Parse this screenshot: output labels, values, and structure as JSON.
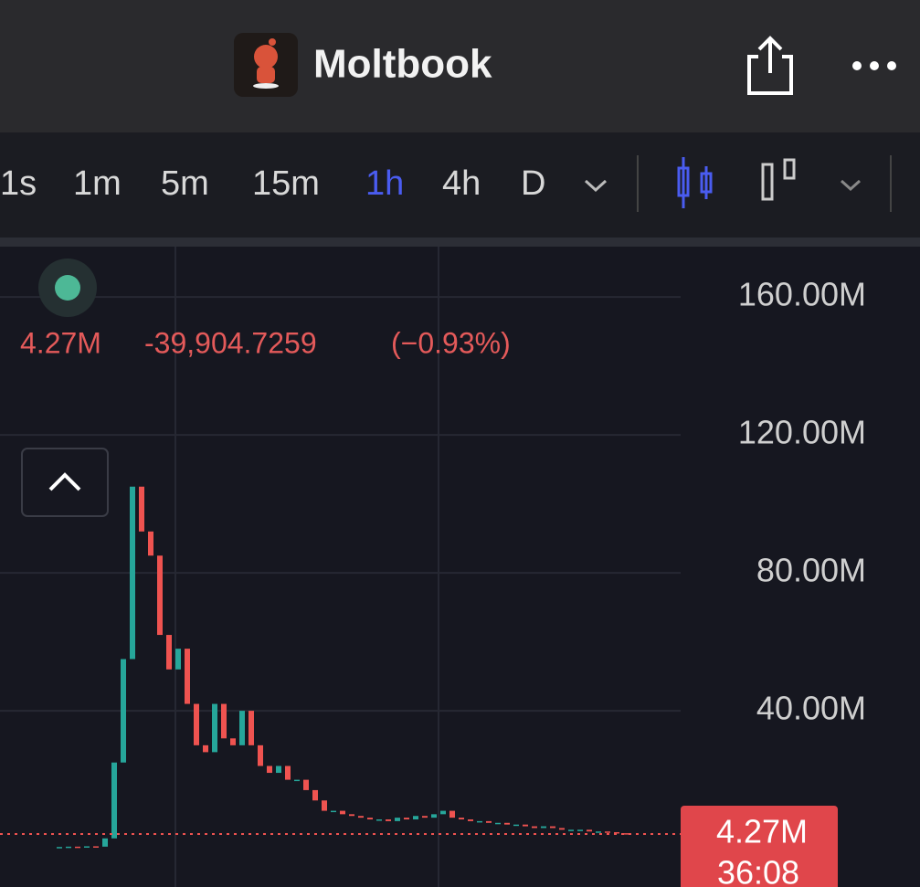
{
  "header": {
    "title": "Moltbook"
  },
  "toolbar": {
    "intervals": [
      "1s",
      "1m",
      "5m",
      "15m",
      "1h",
      "4h",
      "D"
    ]
  },
  "legend": {
    "price": "4.27M",
    "change": "-39,904.7259",
    "change_percent": "(−0.93%)"
  },
  "chart_data": {
    "type": "candlestick",
    "values": [
      0.5,
      0.6,
      0.4,
      0.7,
      0.6,
      3,
      25,
      55,
      105,
      92,
      85,
      62,
      52,
      58,
      42,
      30,
      28,
      42,
      32,
      30,
      40,
      30,
      24,
      22,
      24,
      20,
      20,
      17,
      14,
      11,
      11,
      10,
      9.5,
      9,
      8.5,
      8.5,
      8,
      9,
      8.5,
      9.5,
      9,
      10,
      11,
      9,
      8.5,
      8,
      8,
      7.5,
      7.5,
      7,
      7,
      6.5,
      6,
      6.5,
      6,
      5.5,
      5.5,
      5.5,
      5,
      5,
      4.8,
      4.5,
      4.27
    ],
    "up_color": "#26a69a",
    "down_color": "#ef5350",
    "ylim": [
      -11.1,
      174.6
    ],
    "yticks": [
      {
        "value": 40,
        "label": "40.00M"
      },
      {
        "value": 80,
        "label": "80.00M"
      },
      {
        "value": 120,
        "label": "120.00M"
      },
      {
        "value": 160,
        "label": "160.00M"
      }
    ],
    "grid": true,
    "last_price": {
      "value": 4.27,
      "label": "4.27M"
    },
    "countdown": "36:08"
  }
}
